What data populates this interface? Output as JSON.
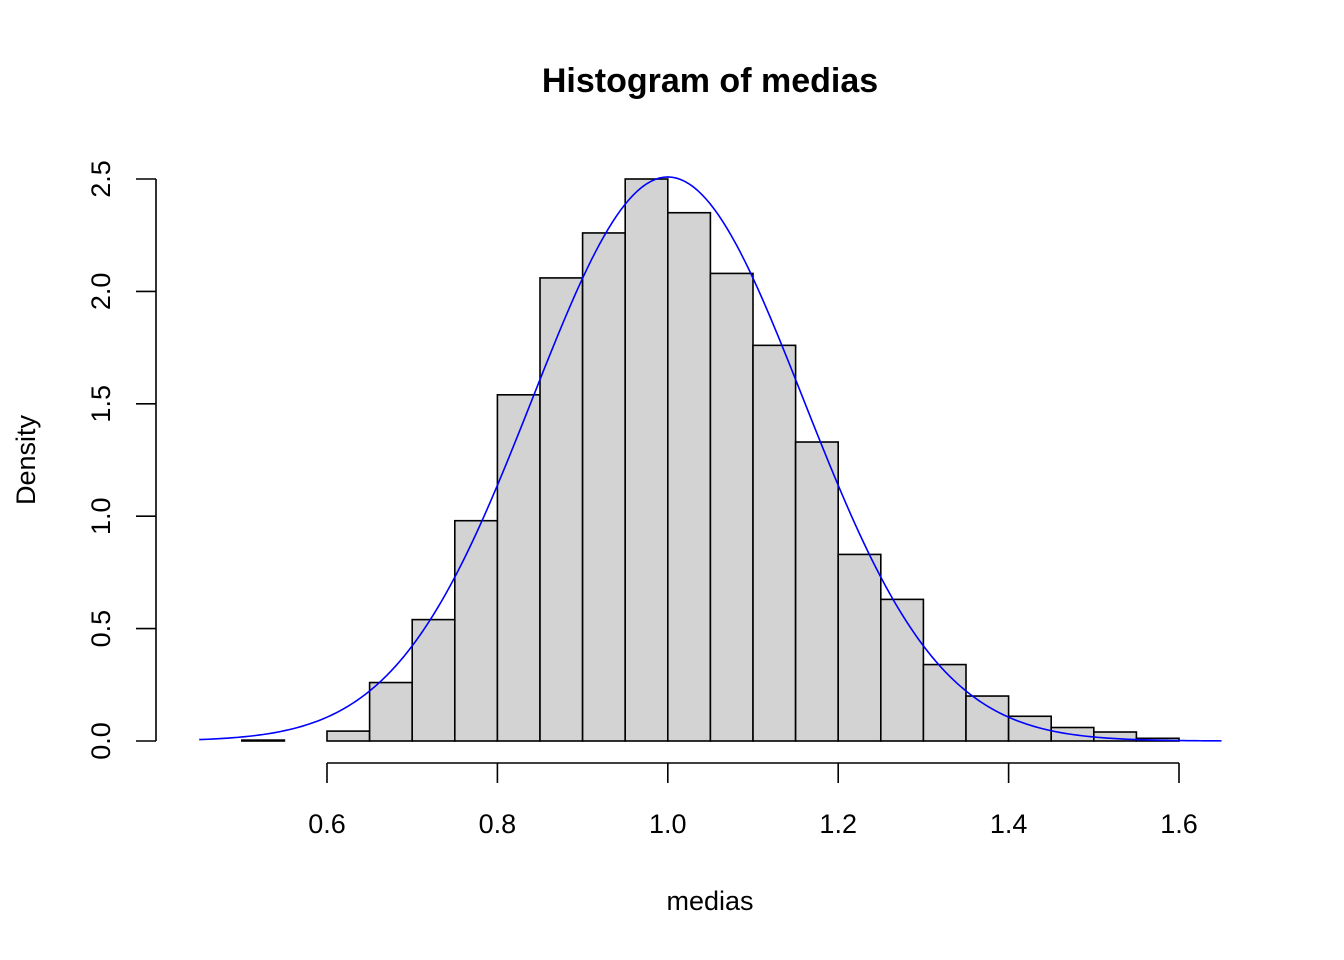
{
  "chart_data": {
    "type": "bar",
    "title": "Histogram of medias",
    "xlabel": "medias",
    "ylabel": "Density",
    "xlim": [
      0.45,
      1.65
    ],
    "ylim": [
      0,
      2.5
    ],
    "x_ticks": [
      0.6,
      0.8,
      1.0,
      1.2,
      1.4,
      1.6
    ],
    "x_tick_labels": [
      "0.6",
      "0.8",
      "1.0",
      "1.2",
      "1.4",
      "1.6"
    ],
    "y_ticks": [
      0.0,
      0.5,
      1.0,
      1.5,
      2.0,
      2.5
    ],
    "y_tick_labels": [
      "0.0",
      "0.5",
      "1.0",
      "1.5",
      "2.0",
      "2.5"
    ],
    "bin_edges": [
      0.45,
      0.5,
      0.55,
      0.6,
      0.65,
      0.7,
      0.75,
      0.8,
      0.85,
      0.9,
      0.95,
      1.0,
      1.05,
      1.1,
      1.15,
      1.2,
      1.25,
      1.3,
      1.35,
      1.4,
      1.45,
      1.5,
      1.55,
      1.6,
      1.65
    ],
    "values": [
      0.0,
      0.004,
      0.0,
      0.044,
      0.26,
      0.54,
      0.98,
      1.54,
      2.06,
      2.26,
      2.5,
      2.35,
      2.08,
      1.76,
      1.33,
      0.83,
      0.63,
      0.34,
      0.2,
      0.11,
      0.06,
      0.04,
      0.012,
      0.0
    ],
    "curve": {
      "type": "normal-density",
      "mean": 1.0,
      "sd": 0.159,
      "x_range": [
        0.45,
        1.65
      ],
      "color": "#0000ff"
    },
    "bar_fill": "#d3d3d3",
    "bar_stroke": "#000000",
    "grid": false,
    "legend": "none"
  }
}
